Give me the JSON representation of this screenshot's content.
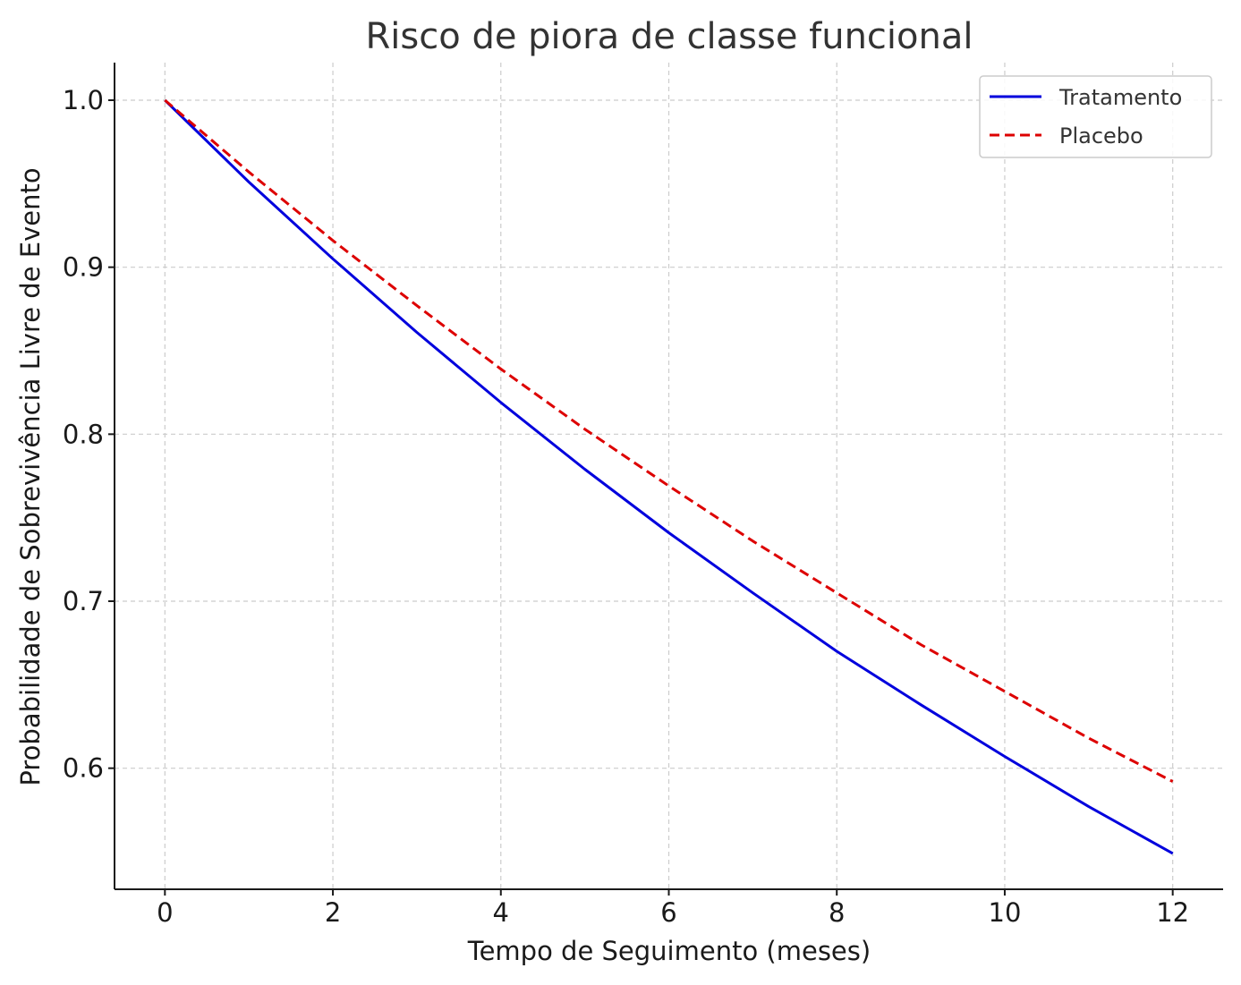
{
  "chart_data": {
    "type": "line",
    "title": "Risco de piora de classe funcional",
    "xlabel": "Tempo de Seguimento (meses)",
    "ylabel": "Probabilidade de Sobrevivência Livre de Evento",
    "xlim": [
      -0.6,
      12.6
    ],
    "ylim": [
      0.5275,
      1.0225
    ],
    "xticks": [
      0,
      2,
      4,
      6,
      8,
      10,
      12
    ],
    "xtick_labels": [
      "0",
      "2",
      "4",
      "6",
      "8",
      "10",
      "12"
    ],
    "yticks": [
      0.6,
      0.7,
      0.8,
      0.9,
      1.0
    ],
    "ytick_labels": [
      "0.6",
      "0.7",
      "0.8",
      "0.9",
      "1.0"
    ],
    "grid": true,
    "legend_position": "top-right",
    "x": [
      0,
      1,
      2,
      3,
      4,
      5,
      6,
      7,
      8,
      9,
      10,
      11,
      12
    ],
    "series": [
      {
        "name": "Tratamento",
        "color": "#0000dd",
        "style": "solid",
        "values": [
          1.0,
          0.951,
          0.905,
          0.861,
          0.819,
          0.779,
          0.741,
          0.705,
          0.67,
          0.638,
          0.607,
          0.577,
          0.549
        ]
      },
      {
        "name": "Placebo",
        "color": "#dd0000",
        "style": "dashed",
        "values": [
          1.0,
          0.957,
          0.916,
          0.877,
          0.839,
          0.803,
          0.769,
          0.736,
          0.705,
          0.674,
          0.646,
          0.618,
          0.592
        ]
      }
    ]
  }
}
